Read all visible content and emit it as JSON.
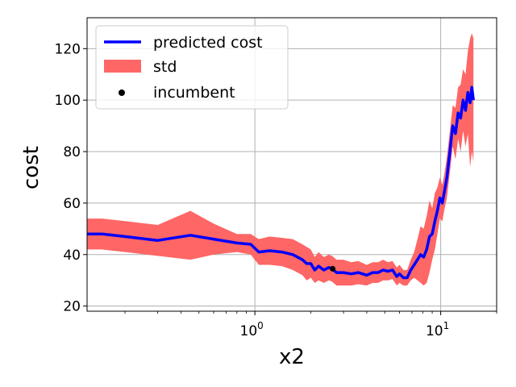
{
  "chart_data": {
    "type": "line",
    "xlabel": "x2",
    "ylabel": "cost",
    "xscale": "log",
    "xlim": [
      0.125,
      20
    ],
    "ylim": [
      18,
      132
    ],
    "grid": true,
    "legend_placement": "top-left",
    "x_ticks": [
      {
        "value": 1,
        "label": "10",
        "exp": "0"
      },
      {
        "value": 10,
        "label": "10",
        "exp": "1"
      }
    ],
    "y_ticks": [
      20,
      40,
      60,
      80,
      100,
      120
    ],
    "colors": {
      "line": "#0000ff",
      "band": "#ff6666",
      "incumbent": "#000000",
      "grid": "#b0b0b0"
    },
    "legend": [
      {
        "label": "predicted cost",
        "kind": "line"
      },
      {
        "label": "std",
        "kind": "band"
      },
      {
        "label": "incumbent",
        "kind": "point"
      }
    ],
    "series": [
      {
        "name": "predicted cost",
        "x": [
          0.125,
          0.15,
          0.2,
          0.3,
          0.45,
          0.6,
          0.8,
          0.95,
          1.05,
          1.2,
          1.4,
          1.6,
          1.8,
          1.9,
          2.0,
          2.1,
          2.2,
          2.35,
          2.5,
          2.6,
          2.75,
          3.0,
          3.3,
          3.6,
          4.0,
          4.3,
          4.6,
          4.9,
          5.2,
          5.5,
          5.8,
          6.0,
          6.3,
          6.6,
          6.9,
          7.2,
          7.5,
          7.8,
          8.1,
          8.4,
          8.7,
          9.0,
          9.3,
          9.6,
          9.9,
          10.2,
          10.5,
          10.8,
          11.2,
          11.6,
          12.0,
          12.4,
          12.8,
          13.2,
          13.6,
          14.0,
          14.4,
          14.7,
          15.0
        ],
        "y": [
          48,
          48,
          47,
          45.5,
          47.5,
          46,
          44.5,
          44,
          41,
          41.5,
          41,
          40,
          38,
          36.5,
          36.5,
          34,
          35.5,
          34,
          35,
          34.5,
          33,
          33,
          32.5,
          33,
          32,
          33,
          33,
          34,
          33.5,
          34,
          31.5,
          32.5,
          31,
          31,
          34,
          36,
          38,
          40,
          39,
          42,
          47,
          48,
          53,
          57,
          62,
          60,
          65,
          70,
          80,
          90,
          87,
          95,
          93,
          100,
          96,
          103,
          99,
          105,
          100
        ]
      },
      {
        "name": "std",
        "x": [
          0.125,
          0.15,
          0.2,
          0.3,
          0.45,
          0.6,
          0.8,
          0.95,
          1.05,
          1.2,
          1.4,
          1.6,
          1.8,
          1.9,
          2.0,
          2.1,
          2.2,
          2.35,
          2.5,
          2.6,
          2.75,
          3.0,
          3.3,
          3.6,
          4.0,
          4.3,
          4.6,
          4.9,
          5.2,
          5.5,
          5.8,
          6.0,
          6.3,
          6.6,
          6.9,
          7.2,
          7.5,
          7.8,
          8.1,
          8.4,
          8.7,
          9.0,
          9.3,
          9.6,
          9.9,
          10.2,
          10.5,
          10.8,
          11.2,
          11.6,
          12.0,
          12.4,
          12.8,
          13.2,
          13.6,
          14.0,
          14.4,
          14.7,
          15.0
        ],
        "lower": [
          42,
          42,
          41,
          39.5,
          38,
          40,
          41,
          40,
          36,
          36,
          35.5,
          34,
          32,
          30,
          31,
          29,
          30,
          29,
          30,
          29.5,
          28,
          28,
          28,
          28.5,
          28,
          29,
          29,
          30,
          30,
          30.5,
          28,
          29,
          28,
          28,
          30,
          31,
          30,
          29,
          28,
          29,
          33,
          38,
          42,
          48,
          54,
          53,
          58,
          62,
          72,
          82,
          77,
          85,
          80,
          88,
          82,
          87,
          74,
          80,
          76
        ],
        "upper": [
          54,
          54,
          53,
          51.5,
          57,
          52,
          48,
          48,
          46,
          47,
          46.5,
          46,
          44,
          43,
          42,
          39,
          41,
          39,
          40,
          39.5,
          38,
          38,
          37,
          37.5,
          36,
          37,
          37,
          38,
          37,
          37.5,
          35,
          36,
          34,
          34,
          38,
          41,
          46,
          51,
          50,
          55,
          61,
          58,
          64,
          66,
          70,
          67,
          72,
          78,
          88,
          98,
          97,
          105,
          106,
          112,
          110,
          119,
          124,
          126,
          124
        ]
      },
      {
        "name": "incumbent",
        "x": [
          2.62
        ],
        "y": [
          34.5
        ]
      }
    ]
  }
}
